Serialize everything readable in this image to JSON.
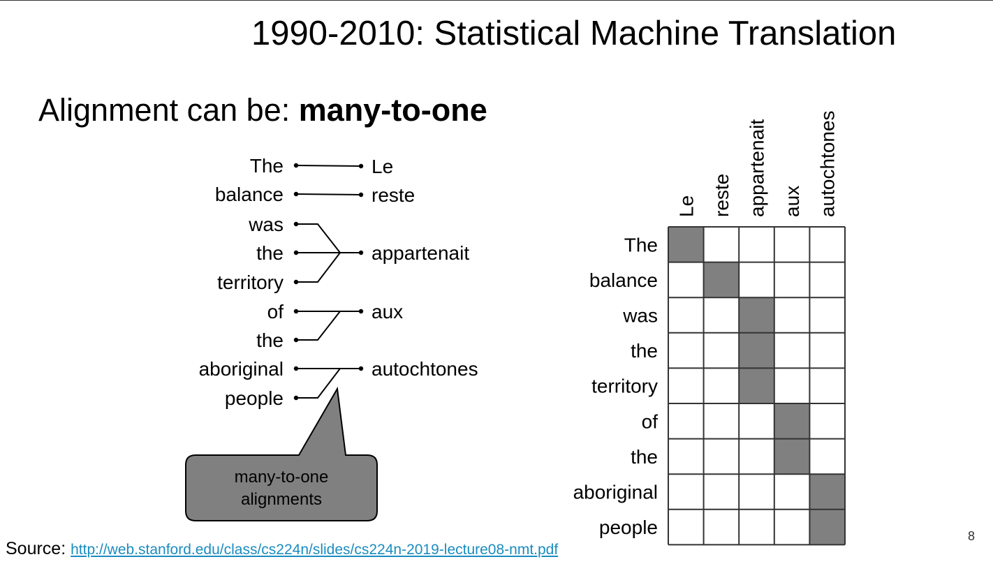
{
  "slide": {
    "title": "1990-2010: Statistical Machine Translation",
    "subtitle_prefix": "Alignment can be: ",
    "subtitle_bold": "many-to-one",
    "page_number": "8",
    "source_label": "Source:",
    "source_url": "http://web.stanford.edu/class/cs224n/slides/cs224n-2019-lecture08-nmt.pdf"
  },
  "diagram": {
    "english_words": [
      "The",
      "balance",
      "was",
      "the",
      "territory",
      "of",
      "the",
      "aboriginal",
      "people"
    ],
    "french_words": [
      "Le",
      "reste",
      "appartenait",
      "aux",
      "autochtones"
    ],
    "alignment": [
      0,
      1,
      2,
      2,
      2,
      3,
      3,
      4,
      4
    ],
    "callout": [
      "many-to-one",
      "alignments"
    ],
    "cell_fill_color": "#808080",
    "grid_line_color": "#333333"
  }
}
